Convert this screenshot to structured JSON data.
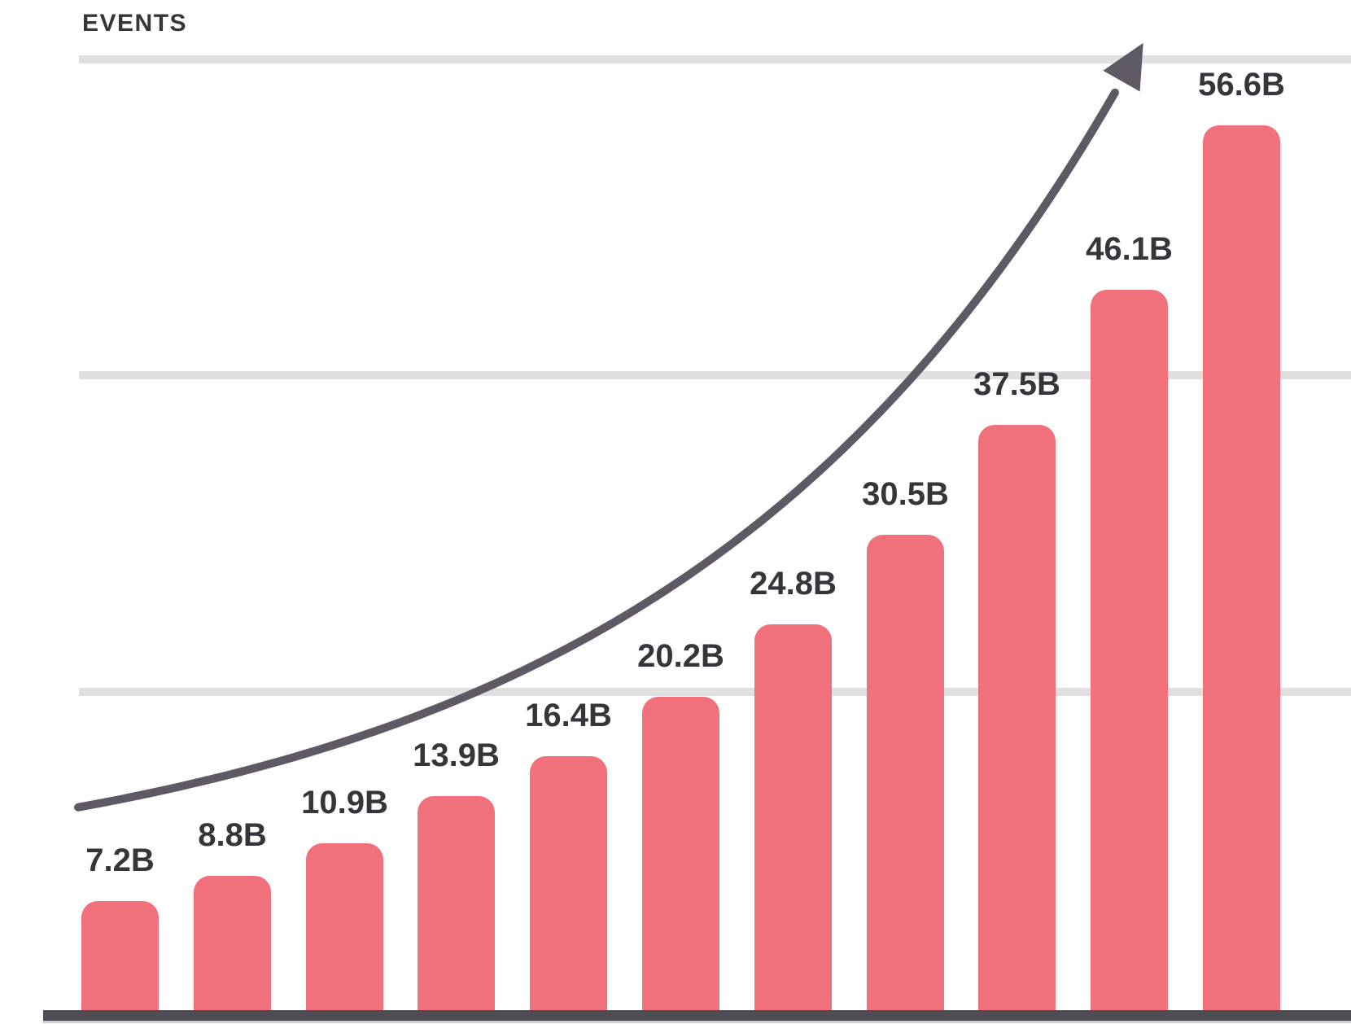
{
  "chart": {
    "axis_label": "EVENTS"
  },
  "chart_data": {
    "type": "bar",
    "title": "",
    "xlabel": "",
    "ylabel": "EVENTS",
    "categories": [
      "",
      "",
      "",
      "",
      "",
      "",
      "",
      "",
      "",
      "",
      ""
    ],
    "values": [
      7.2,
      8.8,
      10.9,
      13.9,
      16.4,
      20.2,
      24.8,
      30.5,
      37.5,
      46.1,
      56.6
    ],
    "value_labels": [
      "7.2B",
      "8.8B",
      "10.9B",
      "13.9B",
      "16.4B",
      "20.2B",
      "24.8B",
      "30.5B",
      "37.5B",
      "46.1B",
      "56.6B"
    ],
    "unit": "B",
    "ylim_implied": [
      0,
      60.5
    ],
    "gridlines": {
      "shown": true,
      "count": 3,
      "labels": "none"
    },
    "legend": "none",
    "annotations": [
      "exponential growth trend arrow rising left-to-right above the bars"
    ],
    "colors": {
      "bg": "#FFFFFF",
      "bar-color": "#F0707B",
      "text-color": "#35353C",
      "grid-color": "#E0E0E0",
      "axis-color": "#4F4C55",
      "shadow-color": "#CFCFD4",
      "trend-color": "#5E5965"
    }
  }
}
